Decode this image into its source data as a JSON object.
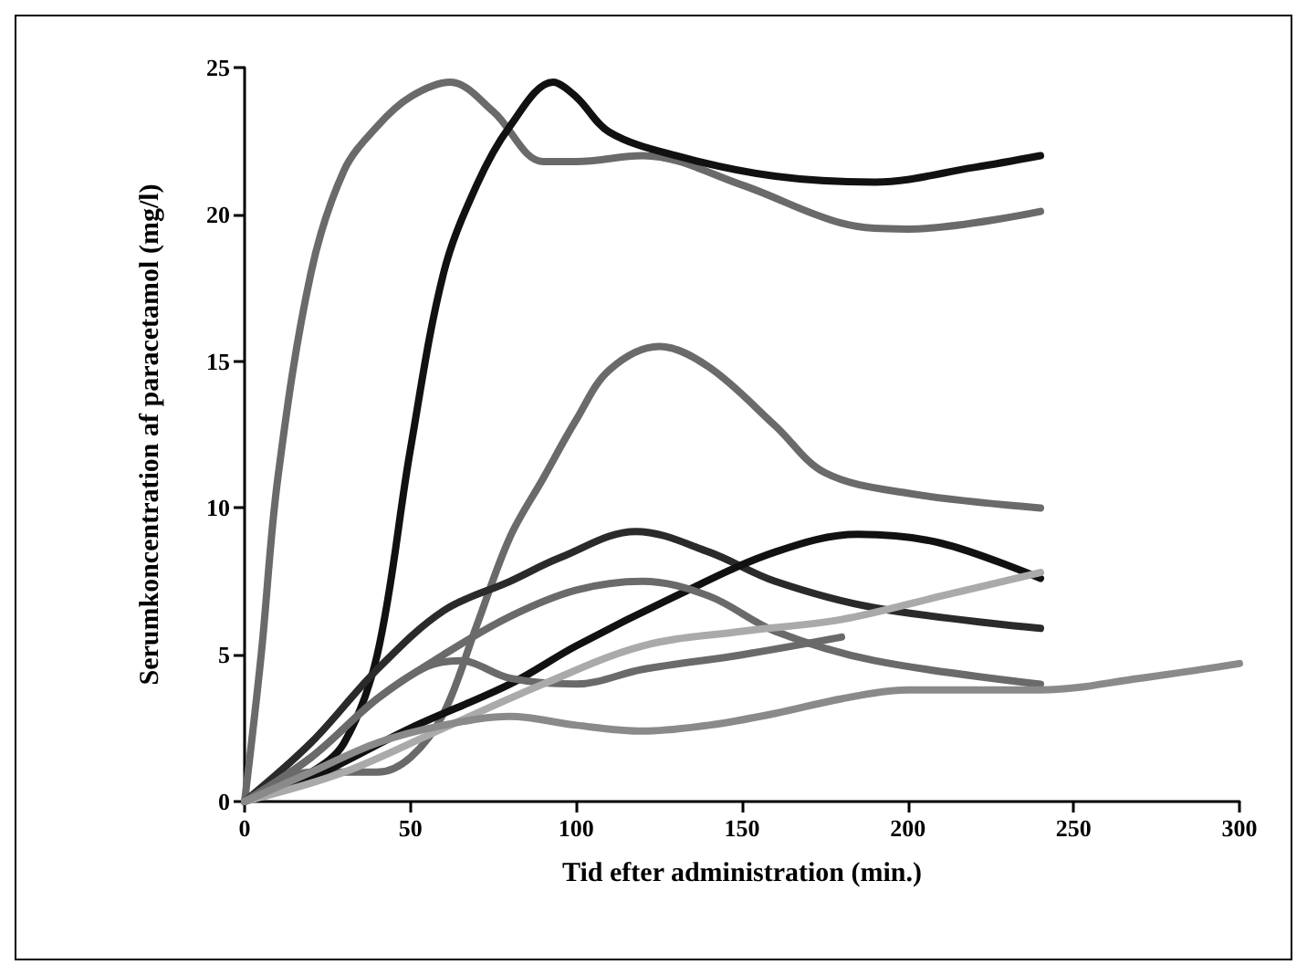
{
  "chart_data": {
    "type": "line",
    "xlabel": "Tid efter administration (min.)",
    "ylabel": "Serumkoncentration af paracetamol (mg/l)",
    "xlim": [
      0,
      300
    ],
    "xticks": [
      0,
      50,
      100,
      150,
      200,
      250,
      300
    ],
    "ylim": [
      0,
      25
    ],
    "yticks": [
      0,
      5,
      10,
      15,
      20,
      25
    ],
    "grid": false,
    "marker": "none",
    "line_style": "solid",
    "series": [
      {
        "color": "#6a6a6a",
        "x": [
          0,
          5,
          10,
          20,
          30,
          40,
          50,
          62,
          75,
          90,
          100,
          120,
          150,
          180,
          200,
          240
        ],
        "values": [
          0,
          5,
          11,
          18,
          21.5,
          23,
          24,
          24.5,
          23.5,
          21.8,
          21.8,
          22,
          21,
          19.7,
          19.5,
          20.1
        ]
      },
      {
        "color": "#111111",
        "x": [
          0,
          20,
          30,
          40,
          50,
          60,
          70,
          80,
          93,
          100,
          110,
          130,
          160,
          190,
          220,
          240
        ],
        "values": [
          0,
          1,
          2,
          5,
          12,
          18,
          21,
          23,
          24.5,
          24,
          22.8,
          22,
          21.3,
          21.1,
          21.6,
          22
        ]
      },
      {
        "color": "#6a6a6a",
        "x": [
          0,
          20,
          40,
          50,
          60,
          70,
          80,
          90,
          100,
          110,
          125,
          140,
          160,
          175,
          200,
          240
        ],
        "values": [
          0,
          1,
          1,
          1.5,
          3,
          6,
          9,
          11,
          13,
          14.7,
          15.5,
          14.8,
          12.8,
          11.2,
          10.5,
          10
        ]
      },
      {
        "color": "#2a2a2a",
        "x": [
          0,
          20,
          40,
          60,
          80,
          95,
          118,
          140,
          160,
          190,
          240
        ],
        "values": [
          0,
          2,
          4.5,
          6.5,
          7.5,
          8.3,
          9.2,
          8.5,
          7.5,
          6.6,
          5.9
        ]
      },
      {
        "color": "#111111",
        "x": [
          0,
          20,
          50,
          80,
          100,
          130,
          160,
          185,
          210,
          240
        ],
        "values": [
          0,
          0.8,
          2.5,
          4,
          5.3,
          7,
          8.5,
          9.1,
          8.8,
          7.6
        ]
      },
      {
        "color": "#6a6a6a",
        "x": [
          0,
          20,
          40,
          60,
          80,
          100,
          120,
          140,
          160,
          190,
          240
        ],
        "values": [
          0,
          1.5,
          3.5,
          5,
          6.3,
          7.2,
          7.5,
          7,
          5.8,
          4.8,
          4
        ]
      },
      {
        "color": "#6a6a6a",
        "x": [
          0,
          20,
          40,
          55,
          65,
          80,
          100,
          120,
          150,
          180
        ],
        "values": [
          0,
          1.5,
          3.5,
          4.6,
          4.8,
          4.2,
          4,
          4.5,
          5,
          5.6
        ]
      },
      {
        "color": "#aaaaaa",
        "x": [
          0,
          30,
          60,
          90,
          120,
          150,
          180,
          210,
          240
        ],
        "values": [
          0,
          1,
          2.5,
          4,
          5.3,
          5.8,
          6.2,
          7,
          7.8
        ]
      },
      {
        "color": "#8a8a8a",
        "x": [
          0,
          20,
          40,
          60,
          80,
          100,
          120,
          140,
          160,
          180,
          200,
          240,
          270,
          300
        ],
        "values": [
          0,
          1,
          2,
          2.6,
          2.9,
          2.6,
          2.4,
          2.6,
          3,
          3.5,
          3.8,
          3.8,
          4.2,
          4.7
        ]
      }
    ]
  }
}
